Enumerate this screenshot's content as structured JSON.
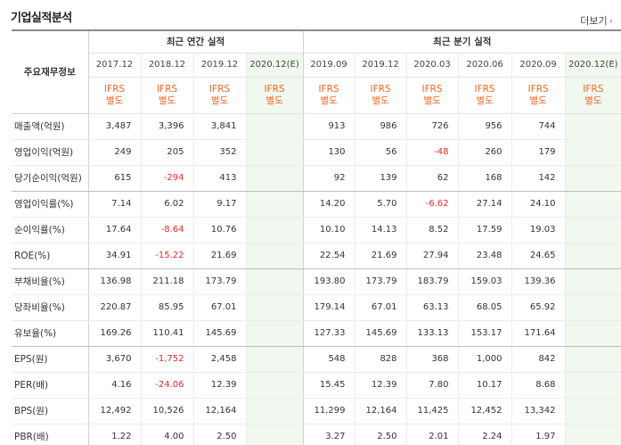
{
  "title": "기업실적분석",
  "more_label": "더보기",
  "label_header": "주요재무정보",
  "annual_header": "최근 연간 실적",
  "quarter_header": "최근 분기 실적",
  "annual_periods": [
    "2017.12",
    "2018.12",
    "2019.12",
    "2020.12(E)"
  ],
  "quarter_periods": [
    "2019.09",
    "2019.12",
    "2020.03",
    "2020.06",
    "2020.09",
    "2020.12(E)"
  ],
  "ifrs_line1": "IFRS",
  "ifrs_line2": "별도",
  "rows": [
    {
      "label": "매출액(억원)",
      "annual": [
        "3,487",
        "3,396",
        "3,841",
        ""
      ],
      "quarter": [
        "913",
        "986",
        "726",
        "956",
        "744",
        ""
      ]
    },
    {
      "label": "영업이익(억원)",
      "annual": [
        "249",
        "205",
        "352",
        ""
      ],
      "quarter": [
        "130",
        "56",
        "-48",
        "260",
        "179",
        ""
      ]
    },
    {
      "label": "당기순이익(억원)",
      "annual": [
        "615",
        "-294",
        "413",
        ""
      ],
      "quarter": [
        "92",
        "139",
        "62",
        "168",
        "142",
        ""
      ]
    },
    {
      "label": "영업이익률(%)",
      "annual": [
        "7.14",
        "6.02",
        "9.17",
        ""
      ],
      "quarter": [
        "14.20",
        "5.70",
        "-6.62",
        "27.14",
        "24.10",
        ""
      ]
    },
    {
      "label": "순이익률(%)",
      "annual": [
        "17.64",
        "-8.64",
        "10.76",
        ""
      ],
      "quarter": [
        "10.10",
        "14.13",
        "8.52",
        "17.59",
        "19.03",
        ""
      ]
    },
    {
      "label": "ROE(%)",
      "annual": [
        "34.91",
        "-15.22",
        "21.69",
        ""
      ],
      "quarter": [
        "22.54",
        "21.69",
        "27.94",
        "23.48",
        "24.65",
        ""
      ]
    },
    {
      "label": "부채비율(%)",
      "annual": [
        "136.98",
        "211.18",
        "173.79",
        ""
      ],
      "quarter": [
        "193.80",
        "173.79",
        "183.79",
        "159.03",
        "139.36",
        ""
      ]
    },
    {
      "label": "당좌비율(%)",
      "annual": [
        "220.87",
        "85.95",
        "67.01",
        ""
      ],
      "quarter": [
        "179.14",
        "67.01",
        "63.13",
        "68.05",
        "65.92",
        ""
      ]
    },
    {
      "label": "유보율(%)",
      "annual": [
        "169.26",
        "110.41",
        "145.69",
        ""
      ],
      "quarter": [
        "127.33",
        "145.69",
        "133.13",
        "153.17",
        "171.64",
        ""
      ]
    },
    {
      "label": "EPS(원)",
      "annual": [
        "3,670",
        "-1,752",
        "2,458",
        ""
      ],
      "quarter": [
        "548",
        "828",
        "368",
        "1,000",
        "842",
        ""
      ]
    },
    {
      "label": "PER(배)",
      "annual": [
        "4.16",
        "-24.06",
        "12.39",
        ""
      ],
      "quarter": [
        "15.45",
        "12.39",
        "7.80",
        "10.17",
        "8.68",
        ""
      ]
    },
    {
      "label": "BPS(원)",
      "annual": [
        "12,492",
        "10,526",
        "12,164",
        ""
      ],
      "quarter": [
        "11,299",
        "12,164",
        "11,425",
        "12,452",
        "13,342",
        ""
      ]
    },
    {
      "label": "PBR(배)",
      "annual": [
        "1.22",
        "4.00",
        "2.50",
        ""
      ],
      "quarter": [
        "3.27",
        "2.50",
        "2.01",
        "2.24",
        "1.97",
        ""
      ]
    }
  ],
  "colors": {
    "ifrs": "#f26522",
    "negative": "#e12b2b",
    "estimate_bg": "#f1f8ef"
  }
}
